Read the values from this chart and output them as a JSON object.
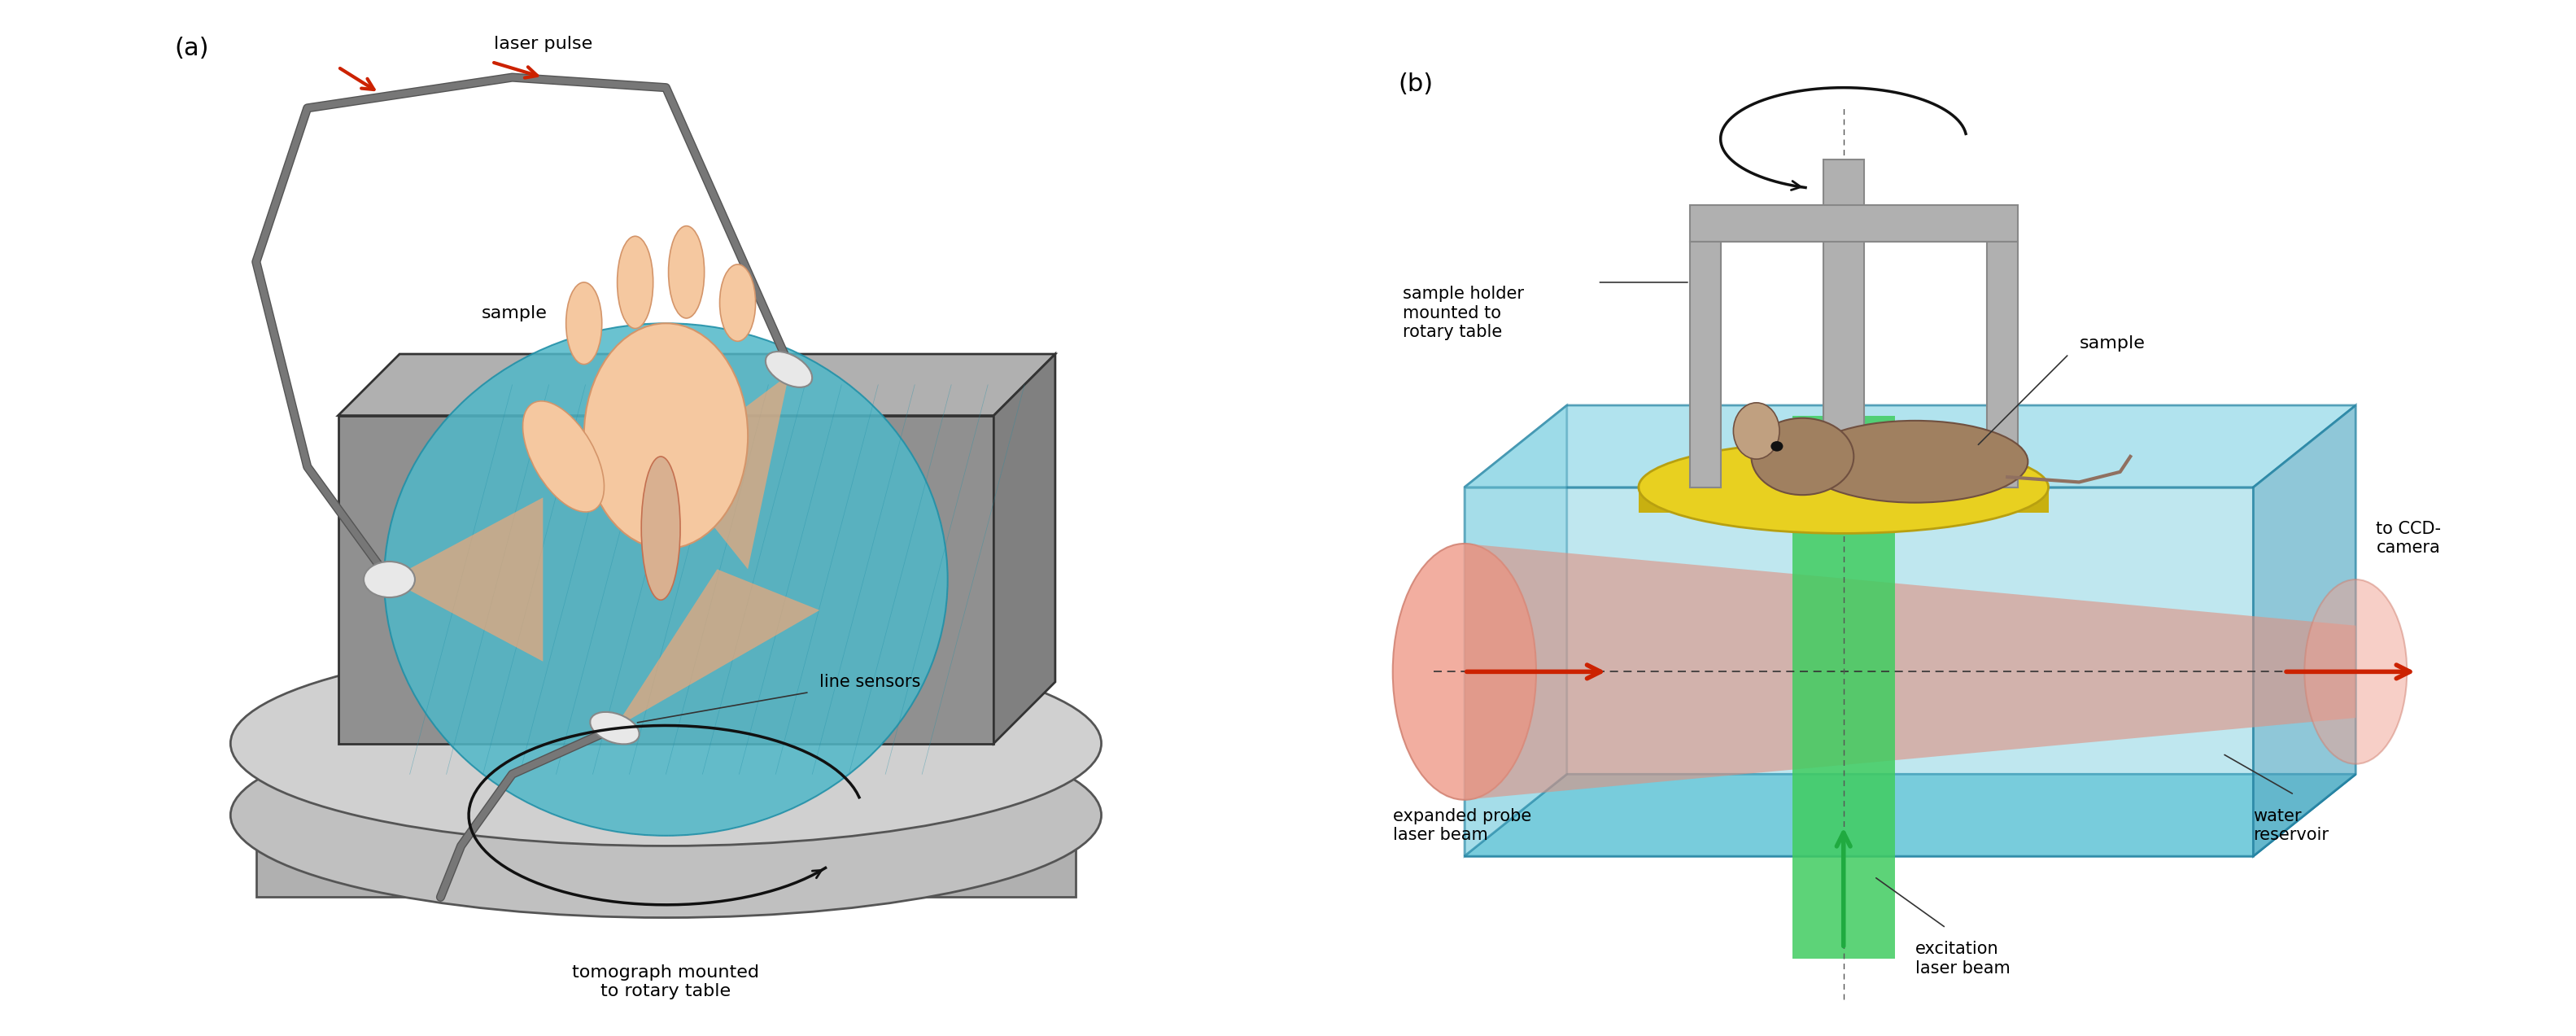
{
  "panel_a_label": "(a)",
  "panel_b_label": "(b)",
  "label_fontsize": 22,
  "annotation_fontsize": 16,
  "bg_color": "#ffffff",
  "panel_a": {
    "laser_pulse_label": "laser pulse",
    "sample_label": "sample",
    "line_sensors_label": "line sensors",
    "tomograph_label": "tomograph mounted\nto rotary table",
    "cable_color": "#666666",
    "device_body_color": "#a0a0a0",
    "water_color": "#40c0d0",
    "disk_color": "#b0b0b0",
    "sensor_color": "#e0e0e0",
    "laser_beam_color": "#f0a080",
    "hand_color": "#f5c8a0",
    "arrow_color": "#cc2200"
  },
  "panel_b": {
    "sample_holder_label": "sample holder\nmounted to\nrotary table",
    "sample_label": "sample",
    "expanded_probe_label": "expanded probe\nlaser beam",
    "excitation_label": "excitation\nlaser beam",
    "water_reservoir_label": "water\nreservoir",
    "ccd_label": "to CCD-\ncamera",
    "box_color_top": "#80d8e8",
    "box_color_side": "#60b8c8",
    "probe_beam_color": "#e08878",
    "probe_circle_color": "#f0a090",
    "green_beam_color": "#40cc60",
    "yellow_disk_color": "#e8d020",
    "frame_color": "#a0a0a0",
    "arrow_color": "#cc2200",
    "black_arrow_color": "#000000"
  }
}
